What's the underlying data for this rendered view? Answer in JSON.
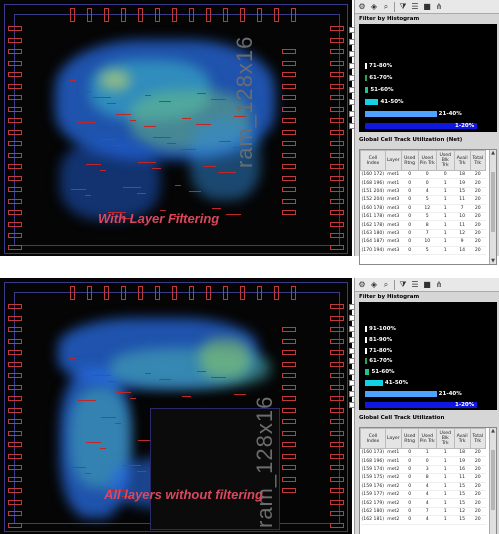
{
  "top": {
    "caption": "With Layer Filtering",
    "macro_label": "ram_128x16",
    "histogram_title": "Filter by Histogram",
    "table_title": "Global Cell Track Utilization (Net)",
    "histogram": [
      {
        "label": "",
        "pct": 0,
        "color": "#000000"
      },
      {
        "label": "",
        "pct": 0,
        "color": "#000000"
      },
      {
        "label": "",
        "pct": 0,
        "color": "#000000"
      },
      {
        "label": "71-80%",
        "pct": 1,
        "color": "#ffffff"
      },
      {
        "label": "61-70%",
        "pct": 2,
        "color": "#2aa35a"
      },
      {
        "label": "51-60%",
        "pct": 3,
        "color": "#20c48e"
      },
      {
        "label": "41-50%",
        "pct": 12,
        "color": "#12d3e6"
      },
      {
        "label": "21-40%",
        "pct": 64,
        "color": "#4fa3ff"
      },
      {
        "label": "1-20%",
        "pct": 100,
        "color": "#1018e0"
      }
    ],
    "columns": [
      "Cell Index",
      "Layer",
      "Used Rtng",
      "Used Pin Trk",
      "Used Blk Trk",
      "Avail Trk",
      "Total Trk"
    ],
    "rows": [
      [
        "(160 172)",
        "met1",
        "0",
        "0",
        "0",
        "18",
        "20"
      ],
      [
        "(168 196)",
        "met1",
        "0",
        "0",
        "1",
        "19",
        "20"
      ],
      [
        "(151 204)",
        "met3",
        "0",
        "4",
        "1",
        "15",
        "20"
      ],
      [
        "(152 204)",
        "met3",
        "0",
        "5",
        "1",
        "11",
        "20"
      ],
      [
        "(160 178)",
        "met3",
        "0",
        "12",
        "1",
        "7",
        "20"
      ],
      [
        "(161 178)",
        "met3",
        "0",
        "5",
        "1",
        "10",
        "20"
      ],
      [
        "(162 178)",
        "met3",
        "0",
        "8",
        "1",
        "11",
        "20"
      ],
      [
        "(163 180)",
        "met3",
        "0",
        "7",
        "1",
        "12",
        "20"
      ],
      [
        "(164 187)",
        "met3",
        "0",
        "10",
        "1",
        "9",
        "20"
      ],
      [
        "(170 194)",
        "met3",
        "0",
        "5",
        "1",
        "14",
        "20"
      ]
    ]
  },
  "bottom": {
    "caption": "All layers without filtering",
    "macro_label": "ram_128x16",
    "histogram_title": "Filter by Histogram",
    "table_title": "Global Cell Track Utilization",
    "histogram": [
      {
        "label": "",
        "pct": 0,
        "color": "#000000"
      },
      {
        "label": "",
        "pct": 0,
        "color": "#000000"
      },
      {
        "label": "91-100%",
        "pct": 1,
        "color": "#ffffff"
      },
      {
        "label": "81-90%",
        "pct": 1,
        "color": "#ffffff"
      },
      {
        "label": "71-80%",
        "pct": 1,
        "color": "#ffffff"
      },
      {
        "label": "61-70%",
        "pct": 2,
        "color": "#2aa35a"
      },
      {
        "label": "51-60%",
        "pct": 4,
        "color": "#20c48e"
      },
      {
        "label": "41-50%",
        "pct": 16,
        "color": "#12d3e6"
      },
      {
        "label": "21-40%",
        "pct": 64,
        "color": "#4fa3ff"
      },
      {
        "label": "1-20%",
        "pct": 100,
        "color": "#1018e0"
      }
    ],
    "columns": [
      "Cell Index",
      "Layer",
      "Used Rtng",
      "Used Pin Trk",
      "Used Blk Trk",
      "Avail Trk",
      "Total Trk"
    ],
    "rows": [
      [
        "(160 173)",
        "met1",
        "0",
        "1",
        "1",
        "18",
        "20"
      ],
      [
        "(168 196)",
        "met1",
        "0",
        "0",
        "1",
        "19",
        "20"
      ],
      [
        "(159 174)",
        "met2",
        "0",
        "3",
        "1",
        "16",
        "20"
      ],
      [
        "(159 175)",
        "met2",
        "0",
        "8",
        "1",
        "11",
        "20"
      ],
      [
        "(159 176)",
        "met2",
        "0",
        "4",
        "1",
        "15",
        "20"
      ],
      [
        "(159 177)",
        "met2",
        "0",
        "4",
        "1",
        "15",
        "20"
      ],
      [
        "(162 179)",
        "met2",
        "0",
        "4",
        "1",
        "15",
        "20"
      ],
      [
        "(162 180)",
        "met2",
        "0",
        "7",
        "1",
        "12",
        "20"
      ],
      [
        "(162 181)",
        "met2",
        "0",
        "4",
        "1",
        "15",
        "20"
      ]
    ]
  },
  "colors": {
    "pin": "#c0393b",
    "viewer_bg": "#050505",
    "caption": "#d9485f"
  }
}
